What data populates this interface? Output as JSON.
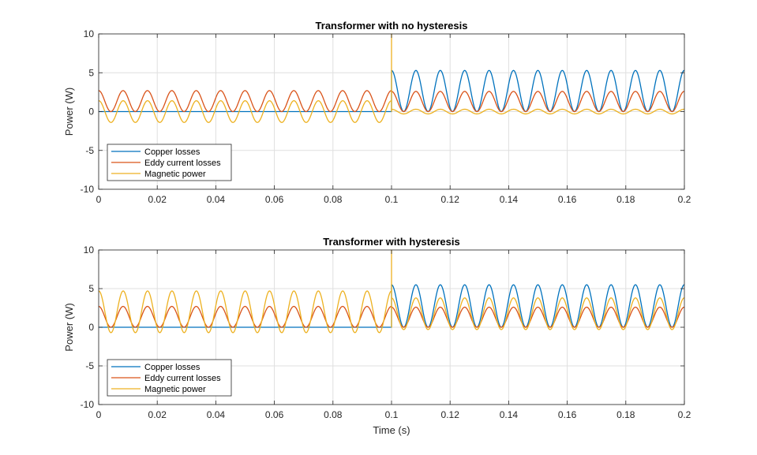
{
  "chart_data": [
    {
      "type": "line",
      "title": "Transformer with no hysteresis",
      "xlabel": "",
      "ylabel": "Power (W)",
      "xlim": [
        0,
        0.2
      ],
      "ylim": [
        -10,
        10
      ],
      "xticks": [
        0,
        0.02,
        0.04,
        0.06,
        0.08,
        0.1,
        0.12,
        0.14,
        0.16,
        0.18,
        0.2
      ],
      "xtick_labels": [
        "0",
        "0.02",
        "0.04",
        "0.06",
        "0.08",
        "0.1",
        "0.12",
        "0.14",
        "0.16",
        "0.18",
        "0.2"
      ],
      "yticks": [
        -10,
        -5,
        0,
        5,
        10
      ],
      "ytick_labels": [
        "-10",
        "-5",
        "0",
        "5",
        "10"
      ],
      "grid": true,
      "legend_position": "bottom-left",
      "series": [
        {
          "name": "Copper losses",
          "color": "#0072BD",
          "segments": [
            {
              "t_start": 0,
              "t_end": 0.1,
              "offset": 0,
              "amplitude": 0,
              "period": 0.00833,
              "phase": 0
            },
            {
              "t_start": 0.1,
              "t_end": 0.2,
              "offset": 2.65,
              "amplitude": 2.65,
              "period": 0.00833,
              "phase": 0.1
            }
          ]
        },
        {
          "name": "Eddy current losses",
          "color": "#D95319",
          "segments": [
            {
              "t_start": 0,
              "t_end": 0.1,
              "offset": 1.35,
              "amplitude": 1.35,
              "period": 0.00833,
              "phase": 0
            },
            {
              "t_start": 0.1,
              "t_end": 0.2,
              "offset": 1.3,
              "amplitude": 1.3,
              "period": 0.00833,
              "phase": 0.1
            }
          ]
        },
        {
          "name": "Magnetic power",
          "color": "#EDB120",
          "segments": [
            {
              "t_start": 0,
              "t_end": 0.1,
              "offset": 0,
              "amplitude": 1.4,
              "period": 0.00833,
              "phase": 0.1
            },
            {
              "t_start": 0.1,
              "t_end": 0.2,
              "offset": 0,
              "amplitude": 0.3,
              "period": 0.00833,
              "phase": 0.1
            }
          ],
          "spike": {
            "t": 0.1,
            "peak": 10
          }
        }
      ]
    },
    {
      "type": "line",
      "title": "Transformer with hysteresis",
      "xlabel": "Time (s)",
      "ylabel": "Power (W)",
      "xlim": [
        0,
        0.2
      ],
      "ylim": [
        -10,
        10
      ],
      "xticks": [
        0,
        0.02,
        0.04,
        0.06,
        0.08,
        0.1,
        0.12,
        0.14,
        0.16,
        0.18,
        0.2
      ],
      "xtick_labels": [
        "0",
        "0.02",
        "0.04",
        "0.06",
        "0.08",
        "0.1",
        "0.12",
        "0.14",
        "0.16",
        "0.18",
        "0.2"
      ],
      "yticks": [
        -10,
        -5,
        0,
        5,
        10
      ],
      "ytick_labels": [
        "-10",
        "-5",
        "0",
        "5",
        "10"
      ],
      "grid": true,
      "legend_position": "bottom-left",
      "series": [
        {
          "name": "Copper losses",
          "color": "#0072BD",
          "segments": [
            {
              "t_start": 0,
              "t_end": 0.1,
              "offset": 0,
              "amplitude": 0,
              "period": 0.00833,
              "phase": 0
            },
            {
              "t_start": 0.1,
              "t_end": 0.2,
              "offset": 2.75,
              "amplitude": 2.75,
              "period": 0.00833,
              "phase": 0.1
            }
          ]
        },
        {
          "name": "Eddy current losses",
          "color": "#D95319",
          "segments": [
            {
              "t_start": 0,
              "t_end": 0.1,
              "offset": 1.35,
              "amplitude": 1.35,
              "period": 0.00833,
              "phase": 0
            },
            {
              "t_start": 0.1,
              "t_end": 0.2,
              "offset": 1.3,
              "amplitude": 1.3,
              "period": 0.00833,
              "phase": 0.1
            }
          ]
        },
        {
          "name": "Magnetic power",
          "color": "#EDB120",
          "segments": [
            {
              "t_start": 0,
              "t_end": 0.1,
              "offset": 2.0,
              "amplitude": 2.7,
              "period": 0.00833,
              "phase": 0.1
            },
            {
              "t_start": 0.1,
              "t_end": 0.2,
              "offset": 1.75,
              "amplitude": 2.05,
              "period": 0.00833,
              "phase": 0.1
            }
          ],
          "spike": {
            "t": 0.1,
            "peak": 10
          }
        }
      ]
    }
  ]
}
